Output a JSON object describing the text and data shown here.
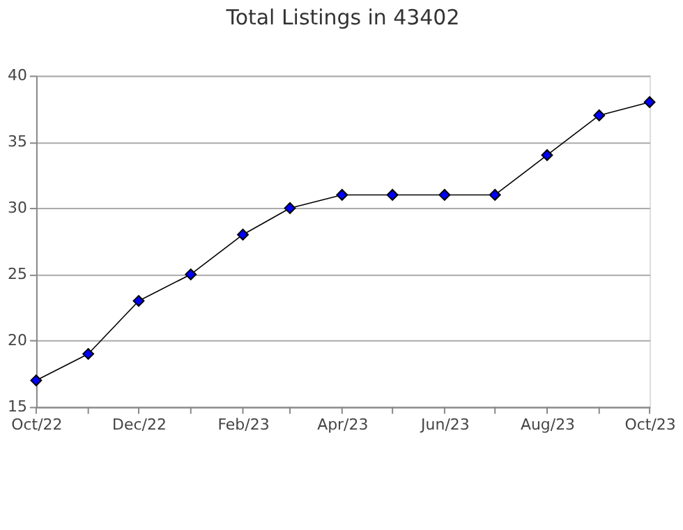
{
  "chart_data": {
    "type": "line",
    "title": "Total Listings in 43402",
    "x": [
      "2022-10",
      "2022-11",
      "2022-12",
      "2023-01",
      "2023-02",
      "2023-03",
      "2023-04",
      "2023-05",
      "2023-06",
      "2023-07",
      "2023-08",
      "2023-09",
      "2023-10"
    ],
    "series": [
      {
        "color": "#0000ff",
        "values": [
          17,
          19,
          23,
          25,
          28,
          30,
          31,
          31,
          31,
          31,
          34,
          37,
          38
        ]
      }
    ],
    "xlim": [
      "2022-10",
      "2023-10"
    ],
    "xticks": [
      {
        "value": "2022-10",
        "label": "Oct/22"
      },
      {
        "value": "2022-11",
        "label": null
      },
      {
        "value": "2022-12",
        "label": "Dec/22"
      },
      {
        "value": "2023-01",
        "label": null
      },
      {
        "value": "2023-02",
        "label": "Feb/23"
      },
      {
        "value": "2023-03",
        "label": null
      },
      {
        "value": "2023-04",
        "label": "Apr/23"
      },
      {
        "value": "2023-05",
        "label": null
      },
      {
        "value": "2023-06",
        "label": "Jun/23"
      },
      {
        "value": "2023-07",
        "label": null
      },
      {
        "value": "2023-08",
        "label": "Aug/23"
      },
      {
        "value": "2023-09",
        "label": null
      },
      {
        "value": "2023-10",
        "label": "Oct/23"
      }
    ],
    "ylim": [
      15,
      40
    ],
    "yticks": [
      15,
      20,
      25,
      30,
      35,
      40
    ],
    "grid": "y",
    "marker": "diamond",
    "line_style": "solid"
  }
}
